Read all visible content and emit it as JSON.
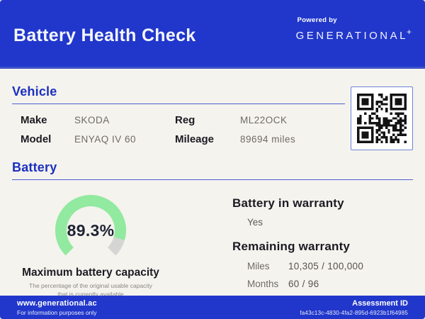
{
  "header": {
    "title": "Battery Health Check",
    "powered_by": "Powered by",
    "brand": "GENERATIONAL",
    "brand_plus": "+"
  },
  "vehicle": {
    "heading": "Vehicle",
    "fields": [
      {
        "label": "Make",
        "value": "SKODA"
      },
      {
        "label": "Model",
        "value": "ENYAQ IV 60"
      },
      {
        "label": "Reg",
        "value": "ML22OCK"
      },
      {
        "label": "Mileage",
        "value": "89694 miles"
      }
    ]
  },
  "battery": {
    "heading": "Battery",
    "capacity_percent": 89.3,
    "capacity_label": "89.3%",
    "gauge_title": "Maximum battery capacity",
    "gauge_subtitle_line1": "The percentage of the original usable capacity",
    "gauge_subtitle_line2": "that is currently available",
    "warranty_heading": "Battery in warranty",
    "warranty_value": "Yes",
    "remaining_heading": "Remaining warranty",
    "remaining": [
      {
        "label": "Miles",
        "value": "10,305 / 100,000"
      },
      {
        "label": "Months",
        "value": "60 / 96"
      }
    ]
  },
  "footer": {
    "website": "www.generational.ac",
    "disclaimer": "For information purposes only",
    "assessment_label": "Assessment ID",
    "assessment_id": "fa43c13c-4830-4fa2-895d-6923b1f64985"
  },
  "icons": {
    "qr": "qr-code"
  },
  "colors": {
    "brand_blue": "#2137CB",
    "heading_blue": "#1B30C0",
    "gauge_green": "#92E9A0",
    "gauge_gray": "#D5D5D3",
    "qr_black": "#131313"
  }
}
